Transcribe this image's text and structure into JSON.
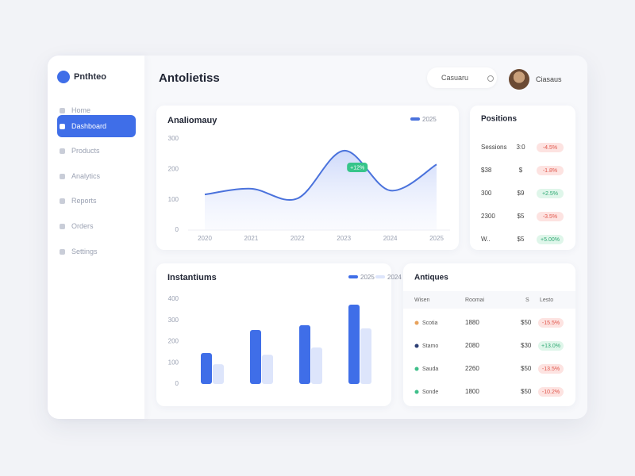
{
  "sidebar": {
    "brand": "Pnthteo",
    "nav": [
      "Home",
      "Dashboard",
      "Products",
      "Analytics",
      "Reports",
      "Orders",
      "Settings"
    ]
  },
  "header": {
    "title": "Antolietiss",
    "search": "Casuaru",
    "user": "Ciasaus"
  },
  "chart_data": [
    {
      "type": "line",
      "title": "Analiomauy",
      "categories": [
        "2020",
        "2021",
        "2022",
        "2023",
        "2024",
        "2025"
      ],
      "series": [
        {
          "name": "2025",
          "color": "#4a72dc",
          "values": [
            117,
            136,
            104,
            261,
            130,
            216
          ]
        }
      ],
      "ylim": [
        0,
        300
      ],
      "yticks": [
        0,
        100,
        200,
        300
      ],
      "annotation": "+12%",
      "grid": false
    },
    {
      "type": "bar",
      "title": "Instantiums",
      "categories": [
        null,
        null,
        null,
        null
      ],
      "series": [
        {
          "name": "2025",
          "color": "#3f6ee8",
          "values": [
            146,
            254,
            277,
            374
          ]
        },
        {
          "name": "2024",
          "color": "#dde5fb",
          "values": [
            93,
            138,
            172,
            262
          ]
        }
      ],
      "ylim": [
        0,
        400
      ],
      "yticks": [
        0,
        100,
        200,
        300,
        400
      ],
      "grid": false
    }
  ],
  "positions": {
    "title": "Positions",
    "rows": [
      {
        "label": "Sessions",
        "value": "3:0",
        "change": "-4.5%"
      },
      {
        "label": "$38",
        "value": "$",
        "change": "-1.8%"
      },
      {
        "label": "300",
        "value": "$9",
        "change": "+2.5%"
      },
      {
        "label": "2300",
        "value": "$5",
        "change": "-3.5%"
      },
      {
        "label": "W..",
        "value": "$5",
        "change": "+5.00%"
      }
    ]
  },
  "table": {
    "title": "Antiques",
    "header": [
      "Wisen",
      "Roomai",
      "S",
      "Lesto"
    ],
    "rows": [
      {
        "dot": "#e8a25c",
        "cells": [
          "Scotia",
          "1880",
          "$50",
          "-15.5%"
        ]
      },
      {
        "dot": "#2c3e74",
        "cells": [
          "Stamo",
          "2080",
          "$30",
          "+13.0%"
        ]
      },
      {
        "dot": "#3fbf8a",
        "cells": [
          "Sauda",
          "2260",
          "$50",
          "-13.5%"
        ]
      },
      {
        "dot": "#3fbf8a",
        "cells": [
          "Sonde",
          "1800",
          "$50",
          "-10.2%"
        ]
      }
    ]
  }
}
